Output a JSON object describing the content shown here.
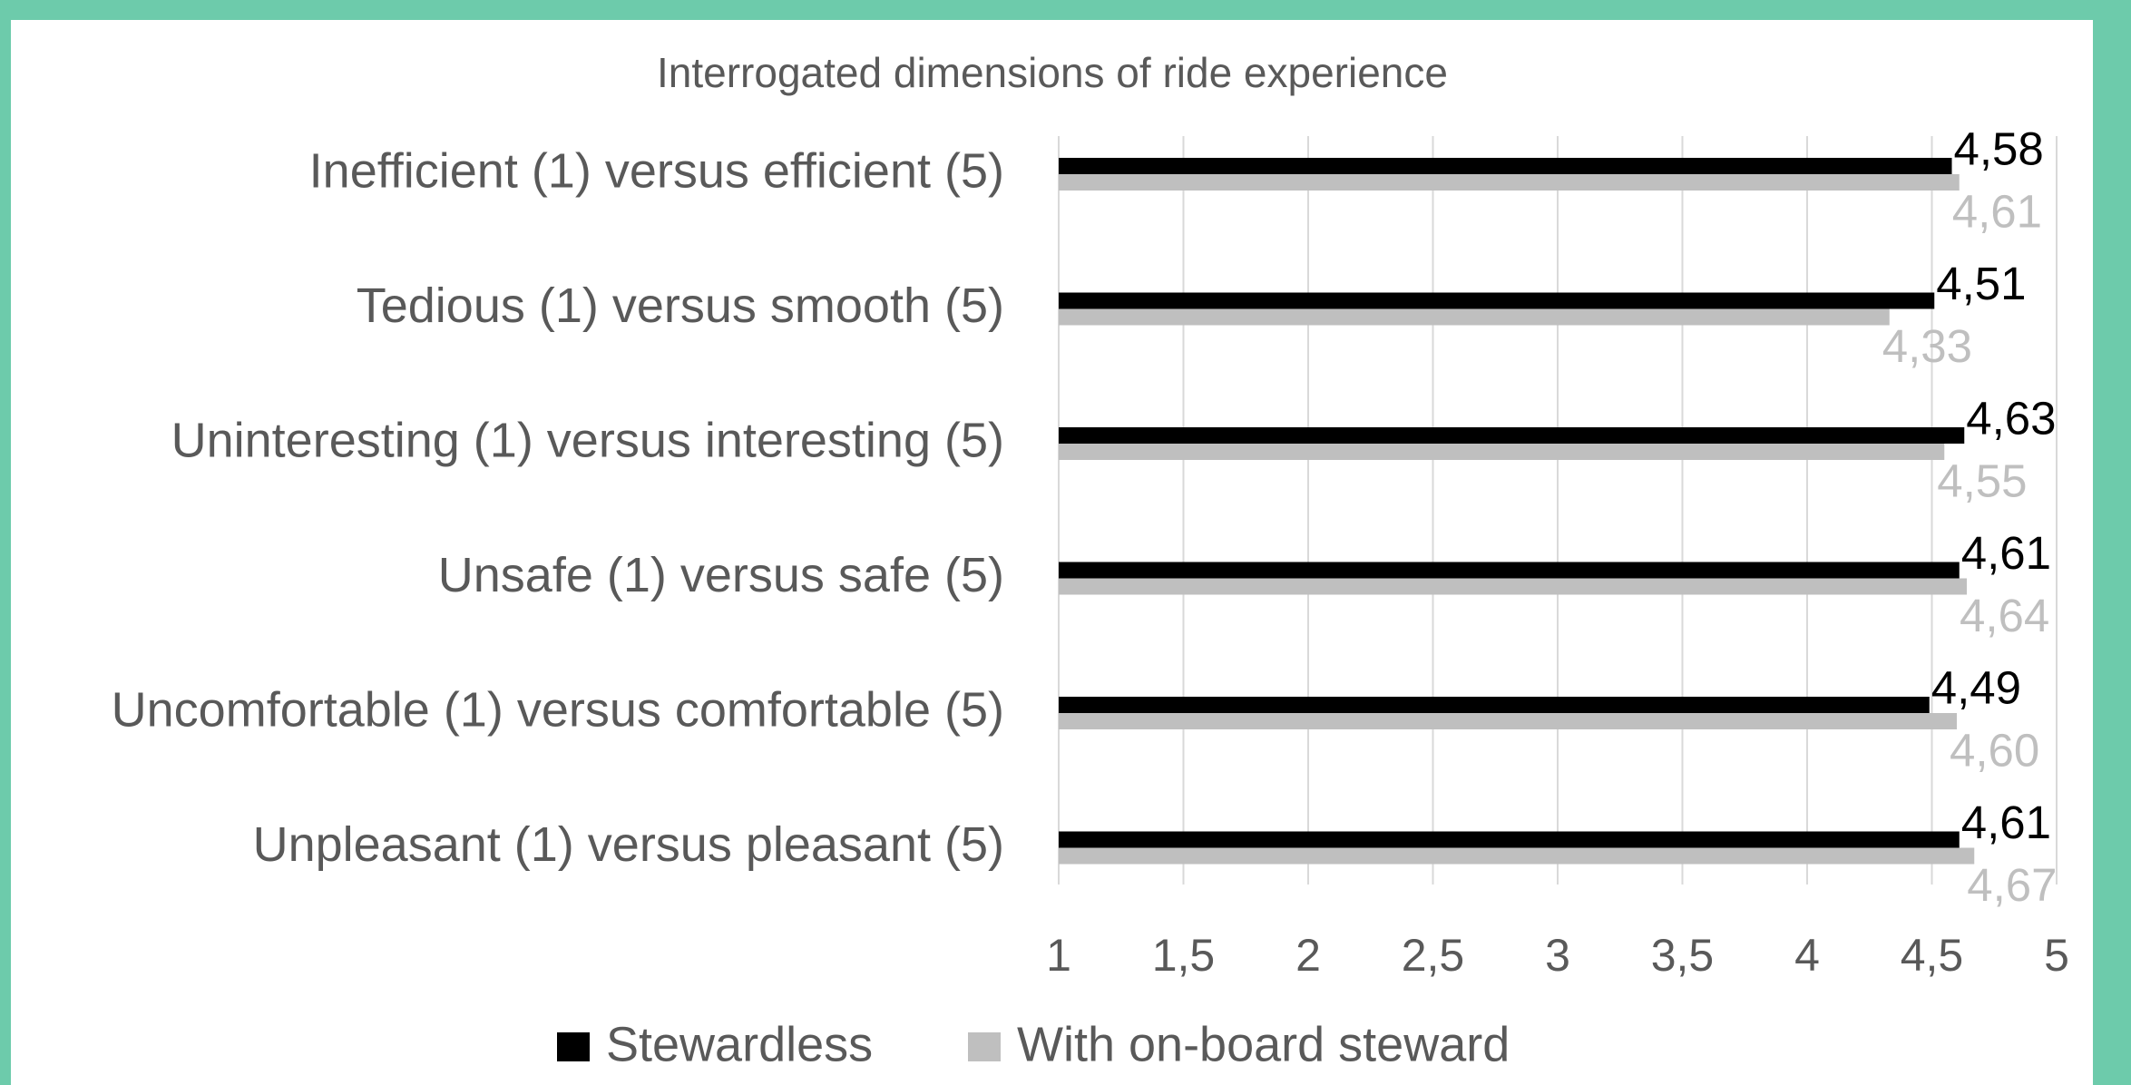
{
  "chart_data": {
    "type": "hbar",
    "title": "Interrogated dimensions of ride experience",
    "categories": [
      "Inefficient (1) versus efficient (5)",
      "Tedious (1) versus smooth (5)",
      "Uninteresting (1) versus interesting (5)",
      "Unsafe (1) versus safe (5)",
      "Uncomfortable (1) versus comfortable (5)",
      "Unpleasant (1) versus pleasant (5)"
    ],
    "series": [
      {
        "name": "Stewardless",
        "color": "#000000",
        "values": [
          4.58,
          4.51,
          4.63,
          4.61,
          4.49,
          4.61
        ],
        "value_labels": [
          "4,58",
          "4,51",
          "4,63",
          "4,61",
          "4,49",
          "4,61"
        ]
      },
      {
        "name": "With on-board steward",
        "color": "#bfbfbf",
        "values": [
          4.61,
          4.33,
          4.55,
          4.64,
          4.6,
          4.67
        ],
        "value_labels": [
          "4,61",
          "4,33",
          "4,55",
          "4,64",
          "4,60",
          "4,67"
        ]
      }
    ],
    "xlim": [
      1,
      5
    ],
    "xticks": [
      1,
      {
        "value": 1.5,
        "label": "1,5"
      },
      2,
      {
        "value": 2.5,
        "label": "2,5"
      },
      3,
      {
        "value": 3.5,
        "label": "3,5"
      },
      4,
      {
        "value": 4.5,
        "label": "4,5"
      },
      5
    ],
    "grid": true
  }
}
